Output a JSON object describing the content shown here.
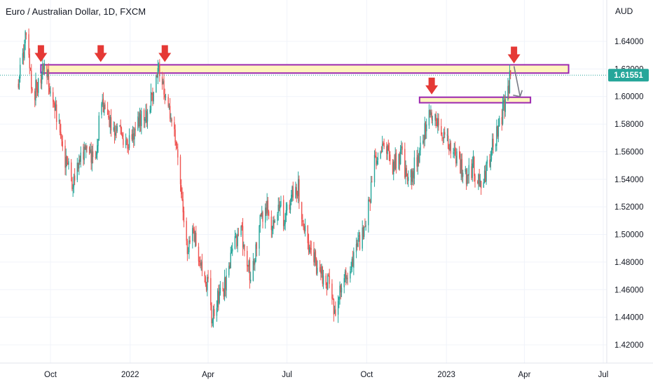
{
  "chart_title": "Euro / Australian Dollar, 1D, FXCM",
  "chart_data": {
    "type": "candlestick",
    "title": "Euro / Australian Dollar, 1D, FXCM",
    "unit": "AUD",
    "ylim": [
      1.41,
      1.655
    ],
    "y_ticks": [
      "1.64000",
      "1.62000",
      "1.60000",
      "1.58000",
      "1.56000",
      "1.54000",
      "1.52000",
      "1.50000",
      "1.48000",
      "1.46000",
      "1.44000",
      "1.42000"
    ],
    "x_ticks": [
      "Oct",
      "2022",
      "Apr",
      "Jul",
      "Oct",
      "2023",
      "Apr",
      "Jul"
    ],
    "last_price": "1.61551",
    "last_price_value": 1.61551,
    "up_color": "#26a69a",
    "down_color": "#ef5350",
    "grid": true,
    "price_path": [
      [
        "2021-08-25",
        1.61
      ],
      [
        "2021-09-03",
        1.645
      ],
      [
        "2021-09-10",
        1.6
      ],
      [
        "2021-09-17",
        1.61
      ],
      [
        "2021-09-24",
        1.622
      ],
      [
        "2021-10-01",
        1.605
      ],
      [
        "2021-10-08",
        1.585
      ],
      [
        "2021-10-18",
        1.555
      ],
      [
        "2021-10-27",
        1.537
      ],
      [
        "2021-11-03",
        1.555
      ],
      [
        "2021-11-12",
        1.56
      ],
      [
        "2021-11-22",
        1.552
      ],
      [
        "2021-11-29",
        1.6
      ],
      [
        "2021-12-03",
        1.585
      ],
      [
        "2021-12-10",
        1.58
      ],
      [
        "2021-12-20",
        1.575
      ],
      [
        "2021-12-31",
        1.565
      ],
      [
        "2022-01-10",
        1.583
      ],
      [
        "2022-01-20",
        1.587
      ],
      [
        "2022-01-26",
        1.6
      ],
      [
        "2022-02-04",
        1.62
      ],
      [
        "2022-02-10",
        1.598
      ],
      [
        "2022-02-18",
        1.582
      ],
      [
        "2022-02-28",
        1.54
      ],
      [
        "2022-03-07",
        1.49
      ],
      [
        "2022-03-15",
        1.5
      ],
      [
        "2022-03-22",
        1.48
      ],
      [
        "2022-04-01",
        1.462
      ],
      [
        "2022-04-05",
        1.438
      ],
      [
        "2022-04-13",
        1.455
      ],
      [
        "2022-04-20",
        1.462
      ],
      [
        "2022-05-02",
        1.495
      ],
      [
        "2022-05-10",
        1.5
      ],
      [
        "2022-05-20",
        1.47
      ],
      [
        "2022-05-31",
        1.51
      ],
      [
        "2022-06-07",
        1.52
      ],
      [
        "2022-06-14",
        1.505
      ],
      [
        "2022-06-22",
        1.525
      ],
      [
        "2022-06-28",
        1.51
      ],
      [
        "2022-07-07",
        1.53
      ],
      [
        "2022-07-14",
        1.535
      ],
      [
        "2022-07-22",
        1.5
      ],
      [
        "2022-08-02",
        1.48
      ],
      [
        "2022-08-10",
        1.47
      ],
      [
        "2022-08-19",
        1.462
      ],
      [
        "2022-08-26",
        1.44
      ],
      [
        "2022-09-01",
        1.465
      ],
      [
        "2022-09-12",
        1.475
      ],
      [
        "2022-09-23",
        1.495
      ],
      [
        "2022-10-03",
        1.52
      ],
      [
        "2022-10-10",
        1.555
      ],
      [
        "2022-10-20",
        1.565
      ],
      [
        "2022-10-31",
        1.55
      ],
      [
        "2022-11-10",
        1.558
      ],
      [
        "2022-11-18",
        1.535
      ],
      [
        "2022-11-28",
        1.555
      ],
      [
        "2022-12-05",
        1.568
      ],
      [
        "2022-12-12",
        1.59
      ],
      [
        "2022-12-20",
        1.58
      ],
      [
        "2022-12-30",
        1.57
      ],
      [
        "2023-01-09",
        1.558
      ],
      [
        "2023-01-17",
        1.55
      ],
      [
        "2023-01-25",
        1.542
      ],
      [
        "2023-02-01",
        1.55
      ],
      [
        "2023-02-08",
        1.535
      ],
      [
        "2023-02-15",
        1.545
      ],
      [
        "2023-02-24",
        1.565
      ],
      [
        "2023-03-03",
        1.58
      ],
      [
        "2023-03-10",
        1.595
      ],
      [
        "2023-03-16",
        1.615
      ]
    ],
    "annotations": {
      "resistance_zone": {
        "from": "2021-09-20",
        "to": "2023-05-22",
        "y_low": 1.617,
        "y_high": 1.623
      },
      "support_zone": {
        "from": "2022-12-01",
        "to": "2023-04-08",
        "y_low": 1.5955,
        "y_high": 1.5995
      },
      "arrows_down": [
        {
          "date": "2021-09-20",
          "price": 1.624
        },
        {
          "date": "2021-11-28",
          "price": 1.624
        },
        {
          "date": "2022-02-10",
          "price": 1.624
        },
        {
          "date": "2022-12-15",
          "price": 1.6005
        },
        {
          "date": "2023-03-20",
          "price": 1.623
        }
      ],
      "projection": [
        [
          "2023-03-20",
          1.622
        ],
        [
          "2023-03-27",
          1.6
        ]
      ]
    }
  }
}
